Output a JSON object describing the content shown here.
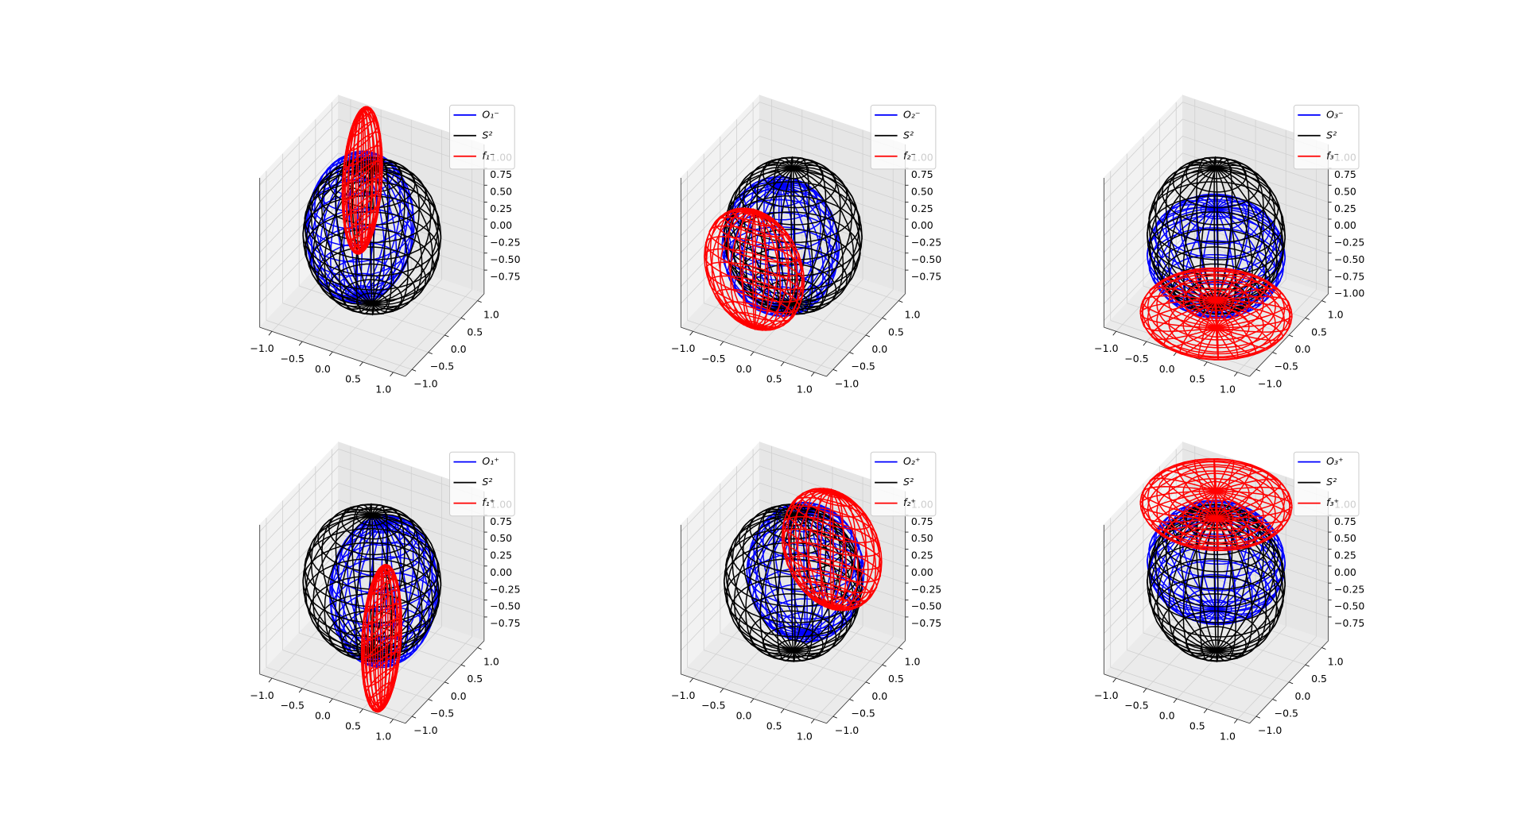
{
  "chart_data": [
    {
      "type": "wireframe3d",
      "legend": "upper right",
      "grid": true,
      "series": [
        {
          "name": "O₁⁻",
          "color": "#0000ff",
          "center": [
            -0.25,
            0.1,
            0
          ],
          "radii": [
            0.75,
            0.9,
            1
          ]
        },
        {
          "name": "S²",
          "color": "#000000",
          "center": [
            0,
            0,
            0
          ],
          "radii": [
            1,
            1,
            1
          ]
        },
        {
          "name": "f₁⁻",
          "color": "#ff0000",
          "center": [
            -0.7,
            1,
            0.1
          ],
          "radii": [
            0.15,
            0.55,
            1.05
          ]
        }
      ],
      "xlim": [
        -1.2,
        1.2
      ],
      "ylim": [
        -1.2,
        1.2
      ],
      "zlim": [
        -1.1,
        1.1
      ],
      "xticks": [
        {
          "value": -1,
          "label": "−1.0"
        },
        {
          "value": -0.5,
          "label": "−0.5"
        },
        {
          "value": 0,
          "label": "0.0"
        },
        0.5,
        {
          "value": 1,
          "label": "1.0"
        }
      ],
      "yticks": [
        {
          "value": -1,
          "label": "−1.0"
        },
        {
          "value": -0.5,
          "label": "−0.5"
        },
        {
          "value": 0,
          "label": "0.0"
        },
        0.5,
        {
          "value": 1,
          "label": "1.0"
        }
      ],
      "zticks": [
        {
          "value": 1,
          "label": "1.00"
        },
        0.75,
        {
          "value": 0.5,
          "label": "0.50"
        },
        0.25,
        {
          "value": 0,
          "label": "0.00"
        },
        {
          "value": -0.25,
          "label": "−0.25"
        },
        {
          "value": -0.5,
          "label": "−0.50"
        },
        {
          "value": -0.75,
          "label": "−0.75"
        }
      ]
    },
    {
      "type": "wireframe3d",
      "legend": "upper right",
      "grid": true,
      "series": [
        {
          "name": "O₂⁻",
          "color": "#0000ff",
          "center": [
            -0.15,
            -0.1,
            -0.15
          ],
          "radii": [
            0.85,
            0.85,
            0.9
          ]
        },
        {
          "name": "S²",
          "color": "#000000",
          "center": [
            0,
            0,
            0
          ],
          "radii": [
            1,
            1,
            1
          ]
        },
        {
          "name": "f₂⁻",
          "color": "#ff0000",
          "center": [
            -0.45,
            -0.35,
            -0.45
          ],
          "radii": [
            0.8,
            0.35,
            0.85
          ]
        }
      ],
      "xlim": [
        -1.2,
        1.2
      ],
      "ylim": [
        -1.2,
        1.2
      ],
      "zlim": [
        -1.1,
        1.1
      ],
      "xticks": [
        {
          "value": -1,
          "label": "−1.0"
        },
        {
          "value": -0.5,
          "label": "−0.5"
        },
        {
          "value": 0,
          "label": "0.0"
        },
        0.5,
        {
          "value": 1,
          "label": "1.0"
        }
      ],
      "yticks": [
        {
          "value": -1,
          "label": "−1.0"
        },
        {
          "value": -0.5,
          "label": "−0.5"
        },
        {
          "value": 0,
          "label": "0.0"
        },
        0.5,
        {
          "value": 1,
          "label": "1.0"
        }
      ],
      "zticks": [
        {
          "value": 1,
          "label": "1.00"
        },
        0.75,
        {
          "value": 0.5,
          "label": "0.50"
        },
        0.25,
        {
          "value": 0,
          "label": "0.00"
        },
        {
          "value": -0.25,
          "label": "−0.25"
        },
        {
          "value": -0.5,
          "label": "−0.50"
        },
        {
          "value": -0.75,
          "label": "−0.75"
        }
      ]
    },
    {
      "type": "wireframe3d",
      "legend": "upper right",
      "grid": true,
      "series": [
        {
          "name": "O₃⁻",
          "color": "#0000ff",
          "center": [
            0,
            0,
            -0.3
          ],
          "radii": [
            1,
            1,
            0.7
          ]
        },
        {
          "name": "S²",
          "color": "#000000",
          "center": [
            0,
            0,
            0
          ],
          "radii": [
            1,
            1,
            1
          ]
        },
        {
          "name": "f₃⁻",
          "color": "#ff0000",
          "center": [
            0,
            0,
            -1.15
          ],
          "radii": [
            1.1,
            1.1,
            0.2
          ]
        }
      ],
      "xlim": [
        -1.2,
        1.2
      ],
      "ylim": [
        -1.2,
        1.2
      ],
      "zlim": [
        -1.1,
        1.1
      ],
      "xticks": [
        {
          "value": -1,
          "label": "−1.0"
        },
        {
          "value": -0.5,
          "label": "−0.5"
        },
        {
          "value": 0,
          "label": "0.0"
        },
        0.5,
        {
          "value": 1,
          "label": "1.0"
        }
      ],
      "yticks": [
        {
          "value": -1,
          "label": "−1.0"
        },
        {
          "value": -0.5,
          "label": "−0.5"
        },
        {
          "value": 0,
          "label": "0.0"
        },
        0.5,
        {
          "value": 1,
          "label": "1.0"
        }
      ],
      "zticks": [
        {
          "value": 1,
          "label": "1.00"
        },
        0.75,
        {
          "value": 0.5,
          "label": "0.50"
        },
        0.25,
        {
          "value": 0,
          "label": "0.00"
        },
        {
          "value": -0.25,
          "label": "−0.25"
        },
        {
          "value": -0.5,
          "label": "−0.50"
        },
        {
          "value": -0.75,
          "label": "−0.75"
        },
        {
          "value": -1,
          "label": "−1.00"
        }
      ]
    },
    {
      "type": "wireframe3d",
      "legend": "upper right",
      "grid": true,
      "series": [
        {
          "name": "O₁⁺",
          "color": "#0000ff",
          "center": [
            0.25,
            -0.1,
            0
          ],
          "radii": [
            0.75,
            0.9,
            1
          ]
        },
        {
          "name": "S²",
          "color": "#000000",
          "center": [
            0,
            0,
            0
          ],
          "radii": [
            1,
            1,
            1
          ]
        },
        {
          "name": "f₁⁺",
          "color": "#ff0000",
          "center": [
            0.7,
            -1,
            -0.1
          ],
          "radii": [
            0.15,
            0.55,
            1.05
          ]
        }
      ],
      "xlim": [
        -1.2,
        1.2
      ],
      "ylim": [
        -1.2,
        1.2
      ],
      "zlim": [
        -1.1,
        1.1
      ],
      "xticks": [
        {
          "value": -1,
          "label": "−1.0"
        },
        {
          "value": -0.5,
          "label": "−0.5"
        },
        {
          "value": 0,
          "label": "0.0"
        },
        0.5,
        {
          "value": 1,
          "label": "1.0"
        }
      ],
      "yticks": [
        {
          "value": -1,
          "label": "−1.0"
        },
        {
          "value": -0.5,
          "label": "−0.5"
        },
        {
          "value": 0,
          "label": "0.0"
        },
        0.5,
        {
          "value": 1,
          "label": "1.0"
        }
      ],
      "zticks": [
        {
          "value": 1,
          "label": "1.00"
        },
        0.75,
        {
          "value": 0.5,
          "label": "0.50"
        },
        0.25,
        {
          "value": 0,
          "label": "0.00"
        },
        {
          "value": -0.25,
          "label": "−0.25"
        },
        {
          "value": -0.5,
          "label": "−0.50"
        },
        {
          "value": -0.75,
          "label": "−0.75"
        }
      ]
    },
    {
      "type": "wireframe3d",
      "legend": "upper right",
      "grid": true,
      "series": [
        {
          "name": "O₂⁺",
          "color": "#0000ff",
          "center": [
            0.15,
            0.1,
            0.15
          ],
          "radii": [
            0.85,
            0.85,
            0.9
          ]
        },
        {
          "name": "S²",
          "color": "#000000",
          "center": [
            0,
            0,
            0
          ],
          "radii": [
            1,
            1,
            1
          ]
        },
        {
          "name": "f₂⁺",
          "color": "#ff0000",
          "center": [
            0.45,
            0.35,
            0.45
          ],
          "radii": [
            0.8,
            0.35,
            0.85
          ]
        }
      ],
      "xlim": [
        -1.2,
        1.2
      ],
      "ylim": [
        -1.2,
        1.2
      ],
      "zlim": [
        -1.1,
        1.1
      ],
      "xticks": [
        {
          "value": -1,
          "label": "−1.0"
        },
        {
          "value": -0.5,
          "label": "−0.5"
        },
        {
          "value": 0,
          "label": "0.0"
        },
        0.5,
        {
          "value": 1,
          "label": "1.0"
        }
      ],
      "yticks": [
        {
          "value": -1,
          "label": "−1.0"
        },
        {
          "value": -0.5,
          "label": "−0.5"
        },
        {
          "value": 0,
          "label": "0.0"
        },
        0.5,
        {
          "value": 1,
          "label": "1.0"
        }
      ],
      "zticks": [
        {
          "value": 1,
          "label": "1.00"
        },
        0.75,
        {
          "value": 0.5,
          "label": "0.50"
        },
        0.25,
        {
          "value": 0,
          "label": "0.00"
        },
        {
          "value": -0.25,
          "label": "−0.25"
        },
        {
          "value": -0.5,
          "label": "−0.50"
        },
        {
          "value": -0.75,
          "label": "−0.75"
        }
      ]
    },
    {
      "type": "wireframe3d",
      "legend": "upper right",
      "grid": true,
      "series": [
        {
          "name": "O₃⁺",
          "color": "#0000ff",
          "center": [
            0,
            0,
            0.3
          ],
          "radii": [
            1,
            1,
            0.7
          ]
        },
        {
          "name": "S²",
          "color": "#000000",
          "center": [
            0,
            0,
            0
          ],
          "radii": [
            1,
            1,
            1
          ]
        },
        {
          "name": "f₃⁺",
          "color": "#ff0000",
          "center": [
            0,
            0,
            1.15
          ],
          "radii": [
            1.1,
            1.1,
            0.2
          ]
        }
      ],
      "xlim": [
        -1.2,
        1.2
      ],
      "ylim": [
        -1.2,
        1.2
      ],
      "zlim": [
        -1.1,
        1.1
      ],
      "xticks": [
        {
          "value": -1,
          "label": "−1.0"
        },
        {
          "value": -0.5,
          "label": "−0.5"
        },
        {
          "value": 0,
          "label": "0.0"
        },
        0.5,
        {
          "value": 1,
          "label": "1.0"
        }
      ],
      "yticks": [
        {
          "value": -1,
          "label": "−1.0"
        },
        {
          "value": -0.5,
          "label": "−0.5"
        },
        {
          "value": 0,
          "label": "0.0"
        },
        0.5,
        {
          "value": 1,
          "label": "1.0"
        }
      ],
      "zticks": [
        {
          "value": 1,
          "label": "1.00"
        },
        0.75,
        {
          "value": 0.5,
          "label": "0.50"
        },
        0.25,
        {
          "value": 0,
          "label": "0.00"
        },
        {
          "value": -0.25,
          "label": "−0.25"
        },
        {
          "value": -0.5,
          "label": "−0.50"
        },
        {
          "value": -0.75,
          "label": "−0.75"
        }
      ]
    }
  ]
}
